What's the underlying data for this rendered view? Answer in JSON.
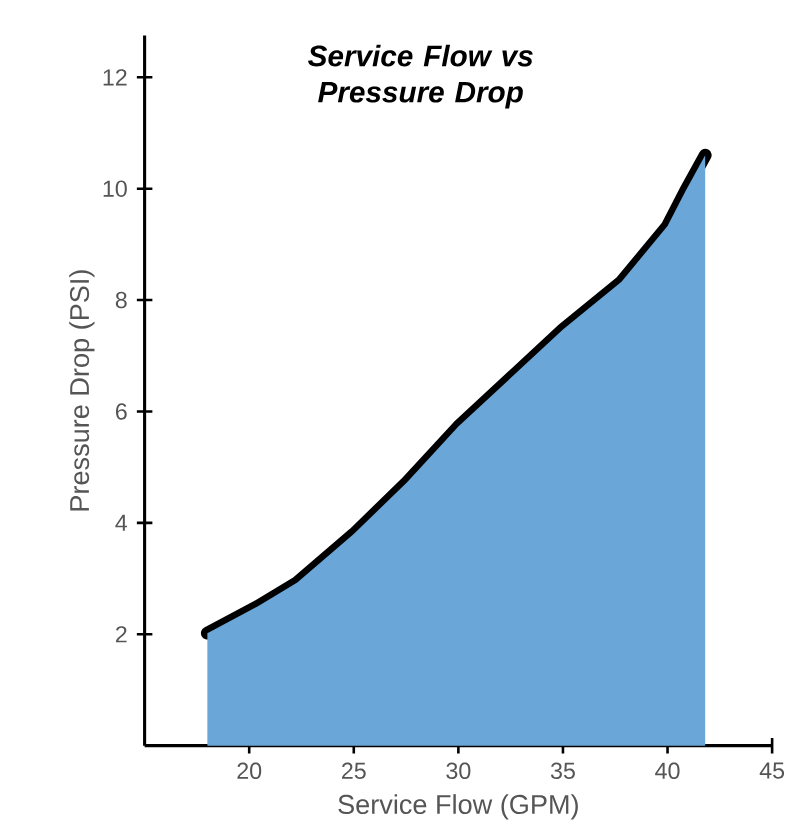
{
  "chart_data": {
    "type": "area",
    "title": "Service Flow vs\nPressure Drop",
    "xlabel": "Service Flow (GPM)",
    "ylabel": "Pressure Drop (PSI)",
    "x": [
      18,
      20.4,
      22.3,
      25,
      27.55,
      30,
      32.5,
      35,
      37.8,
      40,
      40.85,
      41.8
    ],
    "values": [
      2.02,
      2.5,
      2.93,
      3.8,
      4.73,
      5.73,
      6.6,
      7.47,
      8.33,
      9.33,
      9.95,
      10.6
    ],
    "color": "#6aa6d8",
    "xlim": [
      15,
      45
    ],
    "ylim": [
      0,
      12.75
    ],
    "xticks": [
      20,
      25,
      30,
      35,
      40,
      45
    ],
    "yticks": [
      2,
      4,
      6,
      8,
      10,
      12
    ],
    "grid": false
  }
}
